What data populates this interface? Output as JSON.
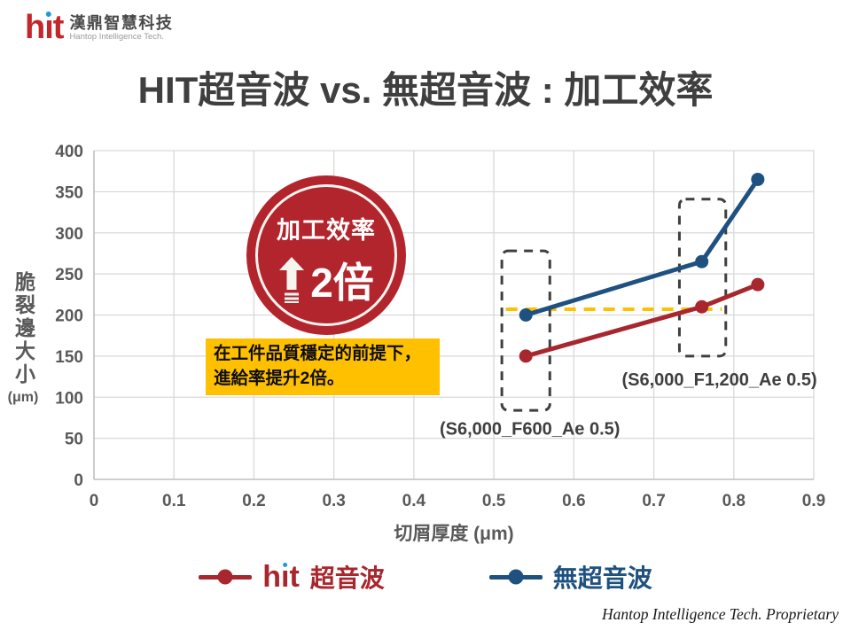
{
  "logo": {
    "brand": "hit",
    "company": "漢鼎智慧科技",
    "tagline": "Hantop Intelligence Tech."
  },
  "title": "HIT超音波 vs. 無超音波 : 加工效率",
  "badge": {
    "line1": "加工效率",
    "value": "2倍"
  },
  "note": {
    "line1": "在工件品質穩定的前提下，",
    "line2": "進給率提升2倍。"
  },
  "footer": "Hantop Intelligence Tech. Proprietary",
  "colors": {
    "badge_red": "#B2252C",
    "note_yellow": "#FFC000",
    "hit_red": "#A8272E",
    "no_us_blue": "#1F5180",
    "title_gray": "#3F3F3F"
  },
  "legend": {
    "items": [
      {
        "brand": "hit",
        "label": "超音波",
        "color": "#A8272E"
      },
      {
        "label": "無超音波",
        "color": "#1F5180"
      }
    ]
  },
  "chart_data": {
    "type": "line",
    "title": "",
    "xlabel": "切屑厚度 (μm)",
    "ylabel": "脆裂邊大小",
    "ylabel_unit": "(μm)",
    "xlim": [
      0,
      0.9
    ],
    "ylim": [
      0,
      400
    ],
    "x_ticks": [
      "0",
      "0.1",
      "0.2",
      "0.3",
      "0.4",
      "0.5",
      "0.6",
      "0.7",
      "0.8",
      "0.9"
    ],
    "y_ticks": [
      0,
      50,
      100,
      150,
      200,
      250,
      300,
      350,
      400
    ],
    "grid": true,
    "gridline_color": "#D9D9D9",
    "axis_color": "#BFBFBF",
    "tick_color": "#595959",
    "x": [
      0.54,
      0.76,
      0.83
    ],
    "series": [
      {
        "name": "hit超音波",
        "color": "#A8272E",
        "values": [
          150,
          210,
          237
        ]
      },
      {
        "name": "無超音波",
        "color": "#1F5180",
        "values": [
          200,
          265,
          365
        ]
      }
    ],
    "ref_line": {
      "y": 207,
      "x_start": 0.515,
      "x_end": 0.785,
      "color": "#FFC000",
      "style": "dashed"
    },
    "highlight_boxes": [
      {
        "x_min": 0.51,
        "x_max": 0.57,
        "y_min": 84,
        "y_max": 278
      },
      {
        "x_min": 0.732,
        "x_max": 0.79,
        "y_min": 150,
        "y_max": 341
      }
    ],
    "point_labels": [
      {
        "text": "(S6,000_F600_Ae 0.5)",
        "x": 0.545,
        "y": 62
      },
      {
        "text": "(S6,000_F1,200_Ae 0.5)",
        "x": 0.782,
        "y": 122
      }
    ],
    "legend_position": "bottom"
  }
}
